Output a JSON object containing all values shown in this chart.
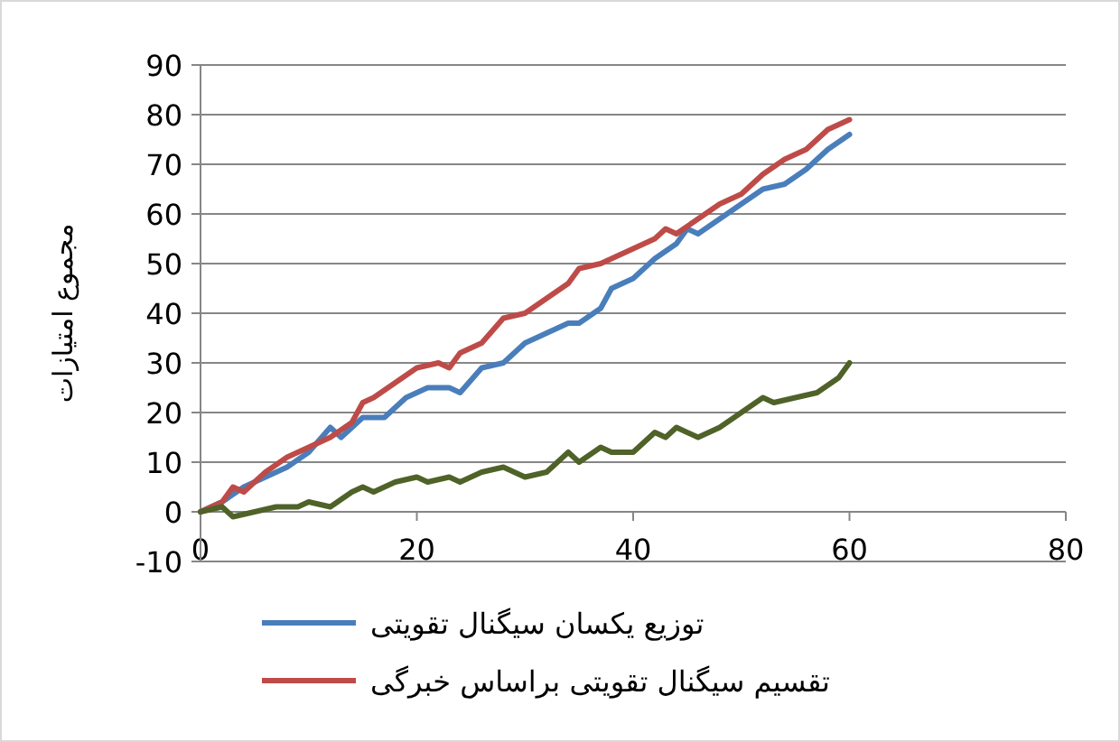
{
  "chart_data": {
    "type": "line",
    "ylabel": "مجموع امتیازات",
    "xlim": [
      0,
      80
    ],
    "xticks": [
      0,
      20,
      40,
      60,
      80
    ],
    "ylim": [
      -10,
      90
    ],
    "yticks": [
      -10,
      0,
      10,
      20,
      30,
      40,
      50,
      60,
      70,
      80,
      90
    ],
    "grid": "y",
    "legend": "bottom",
    "marker": "none",
    "line_style": "solid",
    "series": [
      {
        "name": "توزیع یکسان سیگنال تقویتی",
        "color": "#4a7ebb",
        "x": [
          0,
          2,
          4,
          6,
          8,
          10,
          12,
          13,
          15,
          17,
          19,
          21,
          23,
          24,
          26,
          28,
          30,
          32,
          34,
          35,
          37,
          38,
          40,
          42,
          44,
          45,
          46,
          48,
          50,
          52,
          54,
          56,
          58,
          60
        ],
        "values": [
          0,
          2,
          5,
          7,
          9,
          12,
          17,
          15,
          19,
          19,
          23,
          25,
          25,
          24,
          29,
          30,
          34,
          36,
          38,
          38,
          41,
          45,
          47,
          51,
          54,
          57,
          56,
          59,
          62,
          65,
          66,
          69,
          73,
          76
        ]
      },
      {
        "name": "تقسیم سیگنال تقویتی براساس خبرگی",
        "color": "#be4b48",
        "x": [
          0,
          2,
          3,
          4,
          6,
          8,
          10,
          12,
          14,
          15,
          16,
          18,
          20,
          22,
          23,
          24,
          26,
          28,
          30,
          32,
          34,
          35,
          37,
          40,
          42,
          43,
          44,
          46,
          48,
          50,
          52,
          54,
          56,
          57,
          58,
          60
        ],
        "values": [
          0,
          2,
          5,
          4,
          8,
          11,
          13,
          15,
          18,
          22,
          23,
          26,
          29,
          30,
          29,
          32,
          34,
          39,
          40,
          43,
          46,
          49,
          50,
          53,
          55,
          57,
          56,
          59,
          62,
          64,
          68,
          71,
          73,
          75,
          77,
          79
        ]
      },
      {
        "color": "#4f6228",
        "x": [
          0,
          2,
          3,
          5,
          7,
          9,
          10,
          12,
          14,
          15,
          16,
          18,
          20,
          21,
          23,
          24,
          26,
          28,
          30,
          32,
          34,
          35,
          37,
          38,
          40,
          42,
          43,
          44,
          46,
          48,
          50,
          52,
          53,
          55,
          57,
          59,
          60
        ],
        "values": [
          0,
          1,
          -1,
          0,
          1,
          1,
          2,
          1,
          4,
          5,
          4,
          6,
          7,
          6,
          7,
          6,
          8,
          9,
          7,
          8,
          12,
          10,
          13,
          12,
          12,
          16,
          15,
          17,
          15,
          17,
          20,
          23,
          22,
          23,
          24,
          27,
          30
        ]
      }
    ]
  }
}
